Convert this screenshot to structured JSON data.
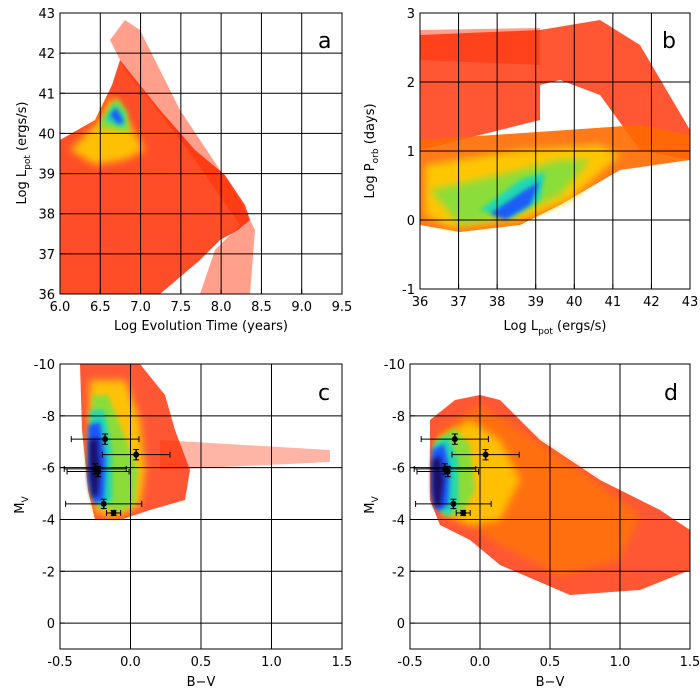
{
  "chart_data": [
    {
      "type": "scatter",
      "panel_label": "a",
      "xlabel": "Log Evolution Time (years)",
      "ylabel": "Log L_pot (ergs/s)",
      "ylabel_main": "Log L",
      "ylabel_sub": "pot",
      "ylabel_tail": " (ergs/s)",
      "xlim": [
        6.0,
        9.5
      ],
      "ylim": [
        36,
        43
      ],
      "xticks": [
        "6.0",
        "6.5",
        "7.0",
        "7.5",
        "8.0",
        "8.5",
        "9.0",
        "9.5"
      ],
      "yticks": [
        "36",
        "37",
        "38",
        "39",
        "40",
        "41",
        "42",
        "43"
      ],
      "xgrid": [
        6.5,
        7.0,
        7.5,
        8.0,
        8.5,
        9.0
      ],
      "ygrid": [
        37,
        38,
        39,
        40,
        41,
        42
      ],
      "density": [
        {
          "x": 6.6,
          "y": 40.45,
          "level": "peak"
        },
        {
          "x": 6.55,
          "y": 40.2,
          "level": "high"
        },
        {
          "x": 6.9,
          "y": 39.5,
          "level": "medium"
        },
        {
          "x": 6.5,
          "y": 38.5,
          "level": "low"
        },
        {
          "x": 7.7,
          "y": 38.4,
          "level": "low"
        },
        {
          "x": 7.9,
          "y": 37.2,
          "level": "sparse"
        }
      ]
    },
    {
      "type": "scatter",
      "panel_label": "b",
      "xlabel": "Log L_pot (ergs/s)",
      "xlabel_main": "Log L",
      "xlabel_sub": "pot",
      "xlabel_tail": " (ergs/s)",
      "ylabel": "Log P_orb (days)",
      "ylabel_main": "Log P",
      "ylabel_sub": "orb",
      "ylabel_tail": " (days)",
      "xlim": [
        36,
        43
      ],
      "ylim": [
        -1,
        3
      ],
      "xticks": [
        "36",
        "37",
        "38",
        "39",
        "40",
        "41",
        "42",
        "43"
      ],
      "yticks": [
        "-1",
        "0",
        "1",
        "2",
        "3"
      ],
      "xgrid": [
        37,
        38,
        39,
        40,
        41,
        42
      ],
      "ygrid": [
        0,
        1,
        2
      ],
      "density": [
        {
          "x": 38.7,
          "y": 0.3,
          "level": "peak"
        },
        {
          "x": 39.3,
          "y": 0.55,
          "level": "high"
        },
        {
          "x": 38.0,
          "y": 0.5,
          "level": "medium"
        },
        {
          "x": 41.5,
          "y": 2.4,
          "level": "low"
        },
        {
          "x": 37.0,
          "y": 2.6,
          "level": "sparse"
        }
      ]
    },
    {
      "type": "scatter",
      "panel_label": "c",
      "xlabel": "B−V",
      "ylabel": "M_V",
      "ylabel_main": "M",
      "ylabel_sub": "V",
      "ylabel_tail": "",
      "xlim": [
        -0.5,
        1.5
      ],
      "ylim": [
        1,
        -10
      ],
      "xticks": [
        "-0.5",
        "0.0",
        "0.5",
        "1.0",
        "1.5"
      ],
      "yticks": [
        "-10",
        "-8",
        "-6",
        "-4",
        "-2",
        "0"
      ],
      "xgrid": [
        0.0,
        0.5,
        1.0
      ],
      "ygrid": [
        -8,
        -6,
        -4,
        -2,
        0
      ],
      "density": [
        {
          "x": -0.28,
          "y": -5.5,
          "level": "peak"
        },
        {
          "x": -0.2,
          "y": -7.0,
          "level": "high"
        },
        {
          "x": 0.0,
          "y": -5.5,
          "level": "medium"
        },
        {
          "x": 0.2,
          "y": -6.0,
          "level": "low"
        }
      ],
      "observations": [
        {
          "x": -0.18,
          "y": -7.1,
          "xerr": 0.24,
          "yerr": 0.2
        },
        {
          "x": 0.04,
          "y": -6.5,
          "xerr": 0.24,
          "yerr": 0.2
        },
        {
          "x": -0.25,
          "y": -5.95,
          "xerr": 0.22,
          "yerr": 0.2
        },
        {
          "x": -0.23,
          "y": -5.85,
          "xerr": 0.22,
          "yerr": 0.2
        },
        {
          "x": -0.19,
          "y": -4.6,
          "xerr": 0.27,
          "yerr": 0.18
        },
        {
          "x": -0.12,
          "y": -4.25,
          "xerr": 0.05,
          "yerr": 0.1
        }
      ]
    },
    {
      "type": "scatter",
      "panel_label": "d",
      "xlabel": "B−V",
      "ylabel": "M_V",
      "ylabel_main": "M",
      "ylabel_sub": "V",
      "ylabel_tail": "",
      "xlim": [
        -0.5,
        1.5
      ],
      "ylim": [
        1,
        -10
      ],
      "xticks": [
        "-0.5",
        "0.0",
        "0.5",
        "1.0",
        "1.5"
      ],
      "yticks": [
        "-10",
        "-8",
        "-6",
        "-4",
        "-2",
        "0"
      ],
      "xgrid": [
        0.0,
        0.5,
        1.0
      ],
      "ygrid": [
        -8,
        -6,
        -4,
        -2,
        0
      ],
      "density": [
        {
          "x": -0.35,
          "y": -5.0,
          "level": "peak"
        },
        {
          "x": -0.3,
          "y": -5.8,
          "level": "high"
        },
        {
          "x": 0.0,
          "y": -6.3,
          "level": "medium"
        },
        {
          "x": 0.8,
          "y": -3.0,
          "level": "low"
        }
      ],
      "observations": [
        {
          "x": -0.18,
          "y": -7.1,
          "xerr": 0.24,
          "yerr": 0.2
        },
        {
          "x": 0.04,
          "y": -6.5,
          "xerr": 0.24,
          "yerr": 0.2
        },
        {
          "x": -0.25,
          "y": -5.95,
          "xerr": 0.22,
          "yerr": 0.2
        },
        {
          "x": -0.23,
          "y": -5.85,
          "xerr": 0.22,
          "yerr": 0.2
        },
        {
          "x": -0.19,
          "y": -4.6,
          "xerr": 0.27,
          "yerr": 0.18
        },
        {
          "x": -0.12,
          "y": -4.25,
          "xerr": 0.05,
          "yerr": 0.1
        }
      ]
    }
  ],
  "colors": {
    "sparse": "#ff2a00",
    "low": "#ff6a00",
    "medium": "#ffd400",
    "mid_green": "#7fe040",
    "high": "#19d8c0",
    "blue": "#1a50ff",
    "peak": "#1a1066",
    "axis": "#000000",
    "errorbar": "#000000"
  }
}
